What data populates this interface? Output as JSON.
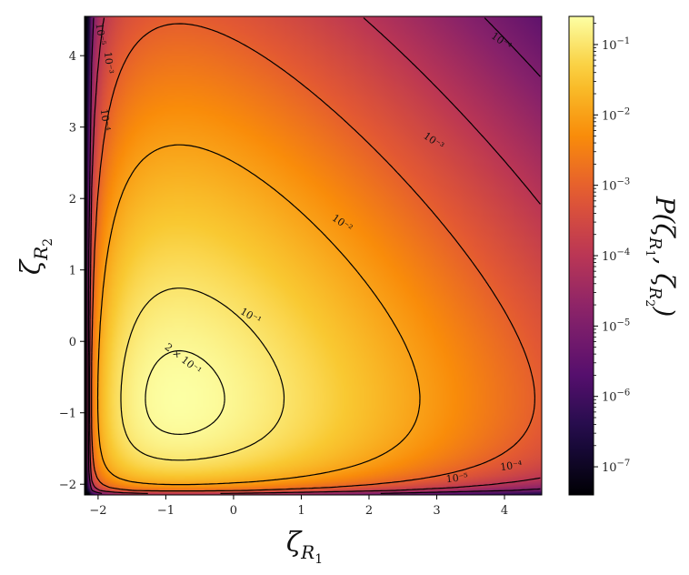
{
  "chart_data": {
    "type": "heatmap",
    "subtype": "density with contour lines",
    "xlabel": "ζ",
    "xlabel_sub": "R",
    "xlabel_subsub": "1",
    "ylabel": "ζ",
    "ylabel_sub": "R",
    "ylabel_subsub": "2",
    "colorbar_label": "P(ζ_R1, ζ_R2)",
    "colorbar_label_text": "P(ζ",
    "colorbar_label_mid": ", ζ",
    "colorbar_label_end": ")",
    "colorbar_label_sub1": "R",
    "colorbar_label_subsub1": "1",
    "colorbar_label_sub2": "R",
    "colorbar_label_subsub2": "2",
    "colormap": "inferno",
    "xlim": [
      -2.2,
      4.55
    ],
    "ylim": [
      -2.15,
      4.55
    ],
    "xticks": [
      -2,
      -1,
      0,
      1,
      2,
      3,
      4
    ],
    "xtick_labels": [
      "−2",
      "−1",
      "0",
      "1",
      "2",
      "3",
      "4"
    ],
    "yticks": [
      -2,
      -1,
      0,
      1,
      2,
      3,
      4
    ],
    "ytick_labels": [
      "−2",
      "−1",
      "0",
      "1",
      "2",
      "3",
      "4"
    ],
    "colorbar_log10_range": [
      -7.4,
      -0.6
    ],
    "colorbar_ticks": [
      {
        "exp": -1,
        "base": "10",
        "power": "−1"
      },
      {
        "exp": -2,
        "base": "10",
        "power": "−2"
      },
      {
        "exp": -3,
        "base": "10",
        "power": "−3"
      },
      {
        "exp": -4,
        "base": "10",
        "power": "−4"
      },
      {
        "exp": -5,
        "base": "10",
        "power": "−5"
      },
      {
        "exp": -6,
        "base": "10",
        "power": "−6"
      },
      {
        "exp": -7,
        "base": "10",
        "power": "−7"
      }
    ],
    "contour_levels": [
      {
        "level": 0.2,
        "label": "2 × 10⁻¹",
        "label_pos": [
          -0.75,
          -0.25
        ],
        "label_angle": 38
      },
      {
        "level": 0.1,
        "label": "10⁻¹",
        "label_pos": [
          0.25,
          0.35
        ],
        "label_angle": 30
      },
      {
        "level": 0.01,
        "label": "10⁻²",
        "label_pos": [
          1.6,
          1.65
        ],
        "label_angle": 35
      },
      {
        "level": 0.001,
        "label": "10⁻³",
        "label_pos": [
          2.95,
          2.8
        ],
        "label_angle": 35
      },
      {
        "level": 0.0001,
        "label": "10⁻⁴",
        "label_pos": [
          3.95,
          4.2
        ],
        "label_angle": 35
      },
      {
        "level": 0.0001,
        "label": "10⁻⁴",
        "label_pos": [
          4.1,
          -1.75
        ],
        "label_angle": -8
      },
      {
        "level": 1e-05,
        "label": "10⁻⁵",
        "label_pos": [
          3.3,
          -1.92
        ],
        "label_angle": -6
      },
      {
        "level": 1e-05,
        "label": "10⁻⁵",
        "label_pos": [
          -1.97,
          4.3
        ],
        "label_angle": 82
      },
      {
        "level": 0.0001,
        "label": "10⁻⁴",
        "label_pos": [
          -1.9,
          3.1
        ],
        "label_angle": 82
      },
      {
        "level": 0.001,
        "label": "10⁻³",
        "label_pos": [
          -1.85,
          3.9
        ],
        "label_angle": 84
      }
    ],
    "peak": {
      "x": -0.8,
      "y": -0.8,
      "value": 0.25
    }
  }
}
